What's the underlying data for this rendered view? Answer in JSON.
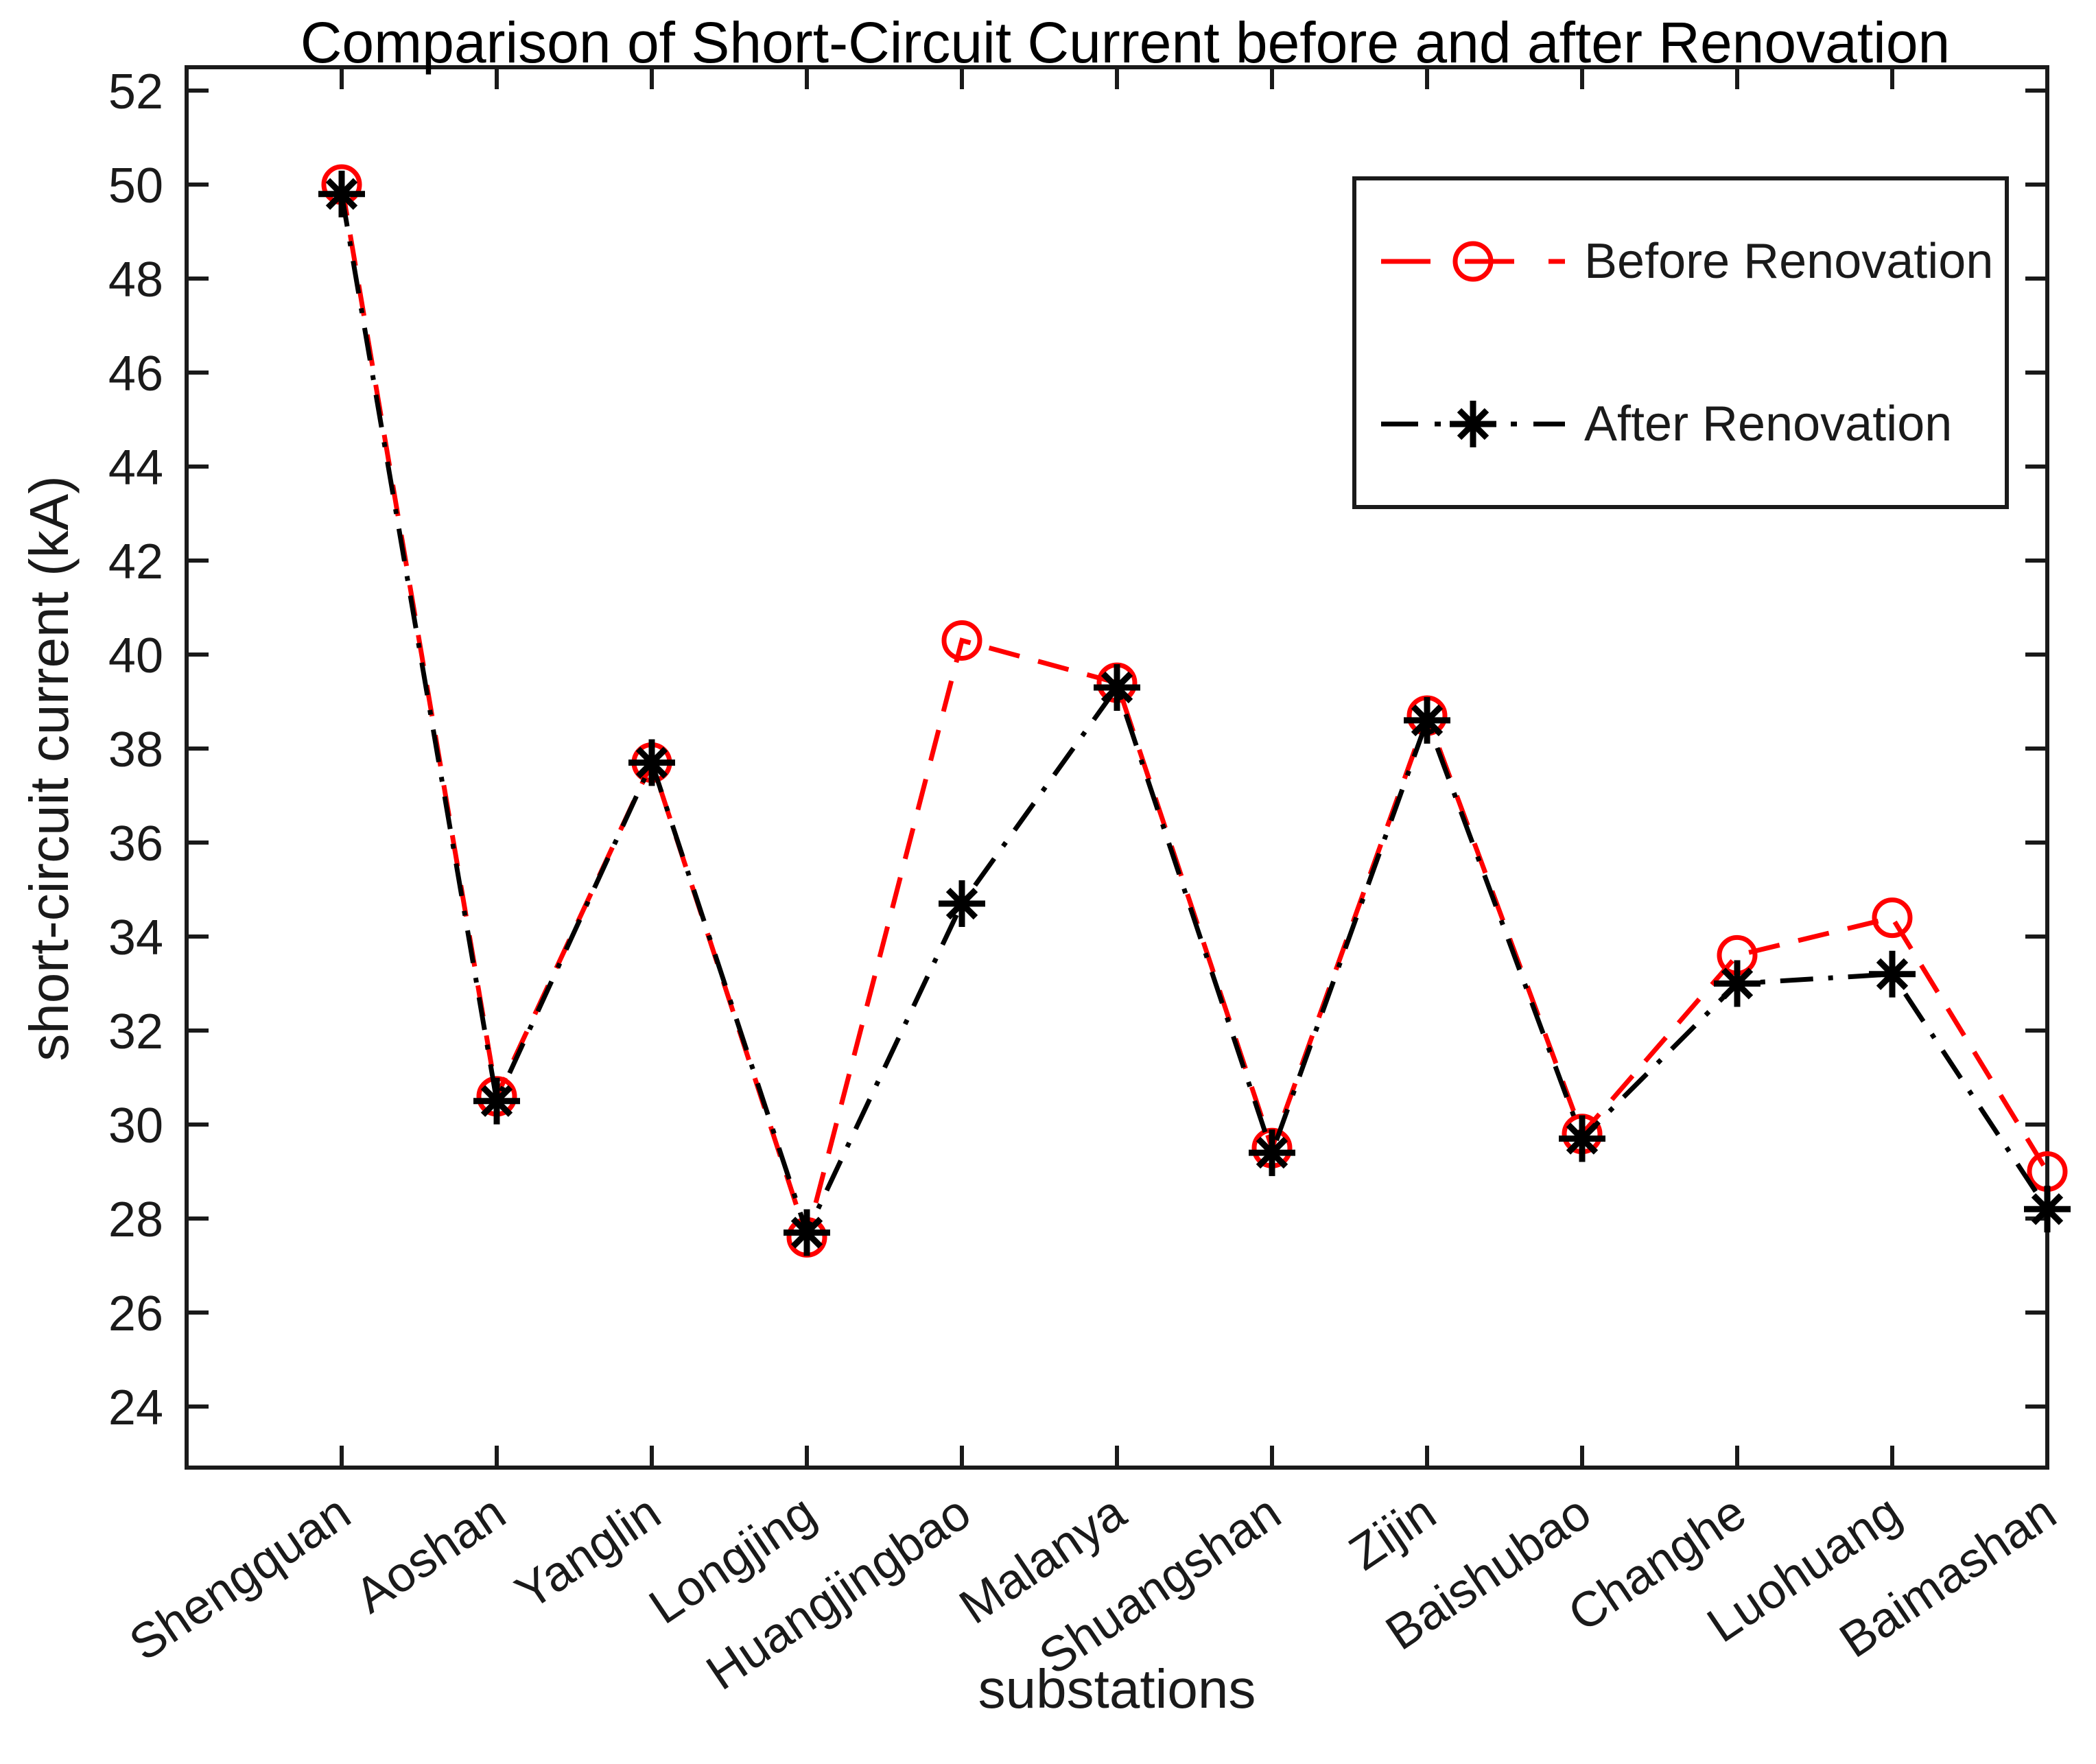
{
  "title": "Comparison of Short-Circuit Current before and after Renovation",
  "axes": {
    "xlabel": "substations",
    "ylabel": "short-circuit current (kA)"
  },
  "legend": {
    "items": [
      {
        "label": "Before Renovation",
        "color": "#ff0000",
        "marker": "circle",
        "linestyle": "dashed"
      },
      {
        "label": "After Renovation",
        "color": "#000000",
        "marker": "asterisk",
        "linestyle": "dashdot"
      }
    ]
  },
  "chart_data": {
    "type": "line",
    "title": "Comparison of Short-Circuit Current before and after Renovation",
    "xlabel": "substations",
    "ylabel": "short-circuit current (kA)",
    "categories": [
      "Shengquan",
      "Aoshan",
      "Yanglin",
      "Longjing",
      "Huangjingbao",
      "Malanya",
      "Shuangshan",
      "Zijin",
      "Baishubao",
      "Changhe",
      "Luohuang",
      "Baimashan"
    ],
    "series": [
      {
        "name": "Before Renovation",
        "color": "#ff0000",
        "linestyle": "dashed",
        "marker": "circle",
        "values": [
          50.0,
          30.6,
          37.7,
          27.6,
          40.3,
          39.4,
          29.5,
          38.7,
          29.8,
          33.6,
          34.4,
          29.0
        ]
      },
      {
        "name": "After Renovation",
        "color": "#000000",
        "linestyle": "dashdot",
        "marker": "asterisk",
        "values": [
          49.8,
          30.5,
          37.7,
          27.7,
          34.7,
          39.3,
          29.4,
          38.6,
          29.7,
          33.0,
          33.2,
          28.2
        ]
      }
    ],
    "ylim": [
      24,
      52
    ],
    "yticks": [
      24,
      26,
      28,
      30,
      32,
      34,
      36,
      38,
      40,
      42,
      44,
      46,
      48,
      50,
      52
    ],
    "grid": false,
    "legend_position": "upper right"
  }
}
